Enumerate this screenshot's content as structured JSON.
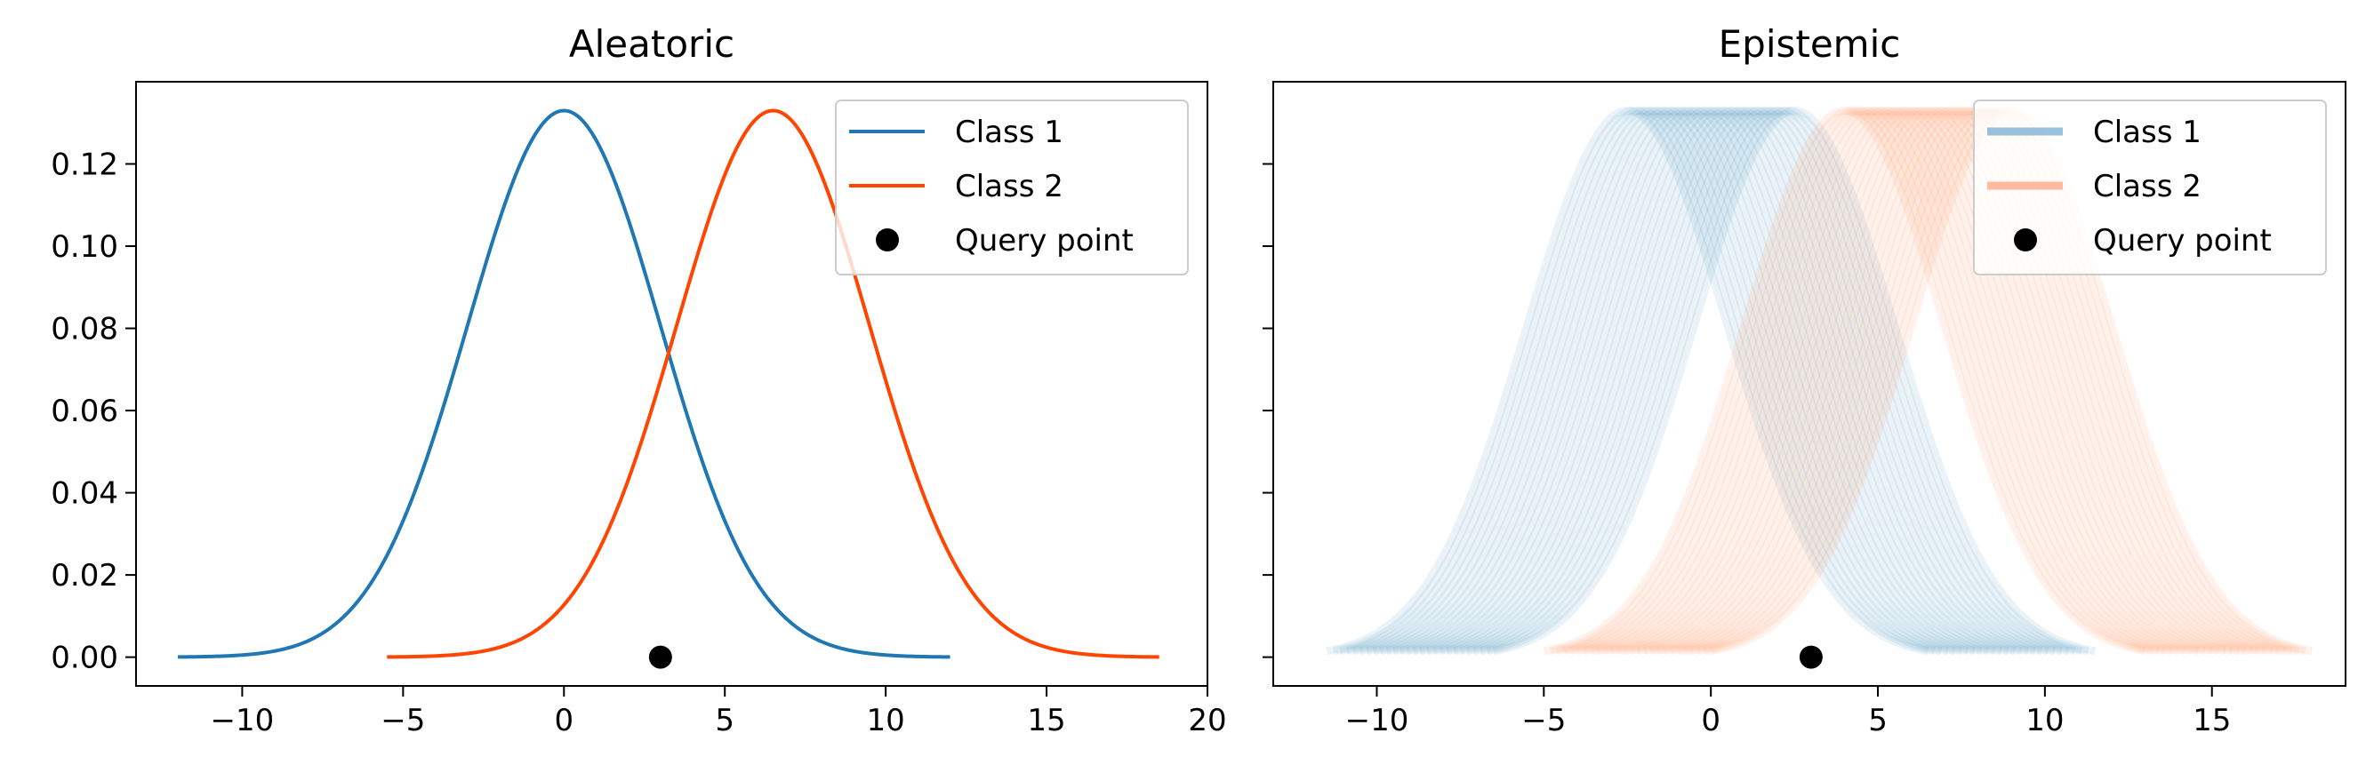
{
  "chart_data": [
    {
      "type": "line",
      "title": "Aleatoric",
      "xlabel": "",
      "ylabel": "",
      "xlim": [
        -13.3,
        20.0
      ],
      "ylim": [
        -0.007,
        0.14
      ],
      "xticks": [
        -10,
        -5,
        0,
        5,
        10,
        15,
        20
      ],
      "xtick_labels": [
        "−10",
        "−5",
        "0",
        "5",
        "10",
        "15",
        "20"
      ],
      "yticks": [
        0.0,
        0.02,
        0.04,
        0.06,
        0.08,
        0.1,
        0.12
      ],
      "ytick_labels": [
        "0.00",
        "0.02",
        "0.04",
        "0.06",
        "0.08",
        "0.10",
        "0.12"
      ],
      "grid": false,
      "legend_position": "top-right",
      "series": [
        {
          "name": "Class 1",
          "kind": "gaussian",
          "mean": 0.0,
          "std": 3.0,
          "x_range": [
            -12.0,
            12.0
          ],
          "color": "#1f77b4"
        },
        {
          "name": "Class 2",
          "kind": "gaussian",
          "mean": 6.5,
          "std": 3.0,
          "x_range": [
            -5.5,
            18.5
          ],
          "color": "#ff4500"
        }
      ],
      "query_point": {
        "name": "Query point",
        "x": 3.0,
        "y": 0.0,
        "color": "#000000"
      }
    },
    {
      "type": "line",
      "title": "Epistemic",
      "xlabel": "",
      "ylabel": "",
      "xlim": [
        -13.1,
        19.0
      ],
      "ylim": [
        -0.007,
        0.14
      ],
      "xticks": [
        -10,
        -5,
        0,
        5,
        10,
        15
      ],
      "xtick_labels": [
        "−10",
        "−5",
        "0",
        "5",
        "10",
        "15"
      ],
      "yticks": [
        0.0,
        0.02,
        0.04,
        0.06,
        0.08,
        0.1,
        0.12
      ],
      "ytick_labels": [],
      "grid": false,
      "legend_position": "top-right",
      "series": [
        {
          "name": "Class 1",
          "kind": "gaussian-ensemble",
          "mean_range": [
            -2.5,
            2.5
          ],
          "count": 26,
          "std": 3.0,
          "half_width": 9.0,
          "color": "#1f77b4",
          "alpha": 0.4
        },
        {
          "name": "Class 2",
          "kind": "gaussian-ensemble",
          "mean_range": [
            4.0,
            9.0
          ],
          "count": 26,
          "std": 3.0,
          "half_width": 9.0,
          "color": "#ff6a2f",
          "alpha": 0.4
        }
      ],
      "query_point": {
        "name": "Query point",
        "x": 3.0,
        "y": 0.0,
        "color": "#000000"
      }
    }
  ]
}
